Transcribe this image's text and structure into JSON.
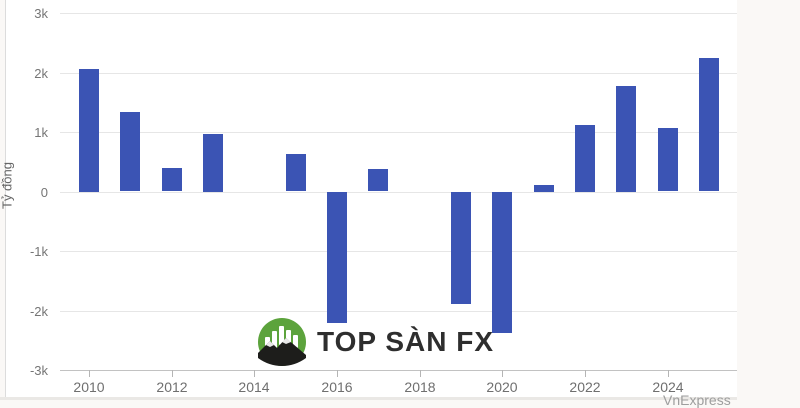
{
  "page": {
    "attribution": "VnExpress",
    "watermark_brand": "TOP SÀN FX",
    "colors": {
      "bar": "#3b54b4",
      "grid": "#e6e6e6",
      "axis": "#c2c2c2",
      "logo_green": "#5ca33c",
      "logo_mountain": "#1d1d1b",
      "page_background": "#faf8f6"
    }
  },
  "chart_data": {
    "type": "bar",
    "title": "",
    "xlabel": "",
    "ylabel": "Tỷ đồng",
    "ylim": [
      -3000,
      3000
    ],
    "grid": true,
    "legend": false,
    "x": [
      2010,
      2011,
      2012,
      2013,
      2014,
      2015,
      2016,
      2017,
      2018,
      2019,
      2020,
      2021,
      2022,
      2023,
      2024,
      2025
    ],
    "values": [
      2060,
      1330,
      390,
      970,
      null,
      630,
      -2200,
      370,
      null,
      -1890,
      -2370,
      110,
      1120,
      1780,
      1060,
      2240
    ],
    "y_ticks": [
      {
        "label": "3k",
        "value": 3000
      },
      {
        "label": "2k",
        "value": 2000
      },
      {
        "label": "1k",
        "value": 1000
      },
      {
        "label": "0",
        "value": 0
      },
      {
        "label": "-1k",
        "value": -1000
      },
      {
        "label": "-2k",
        "value": -2000
      },
      {
        "label": "-3k",
        "value": -3000
      }
    ],
    "x_tick_labels": [
      "2010",
      "2012",
      "2014",
      "2016",
      "2018",
      "2020",
      "2022",
      "2024"
    ]
  }
}
